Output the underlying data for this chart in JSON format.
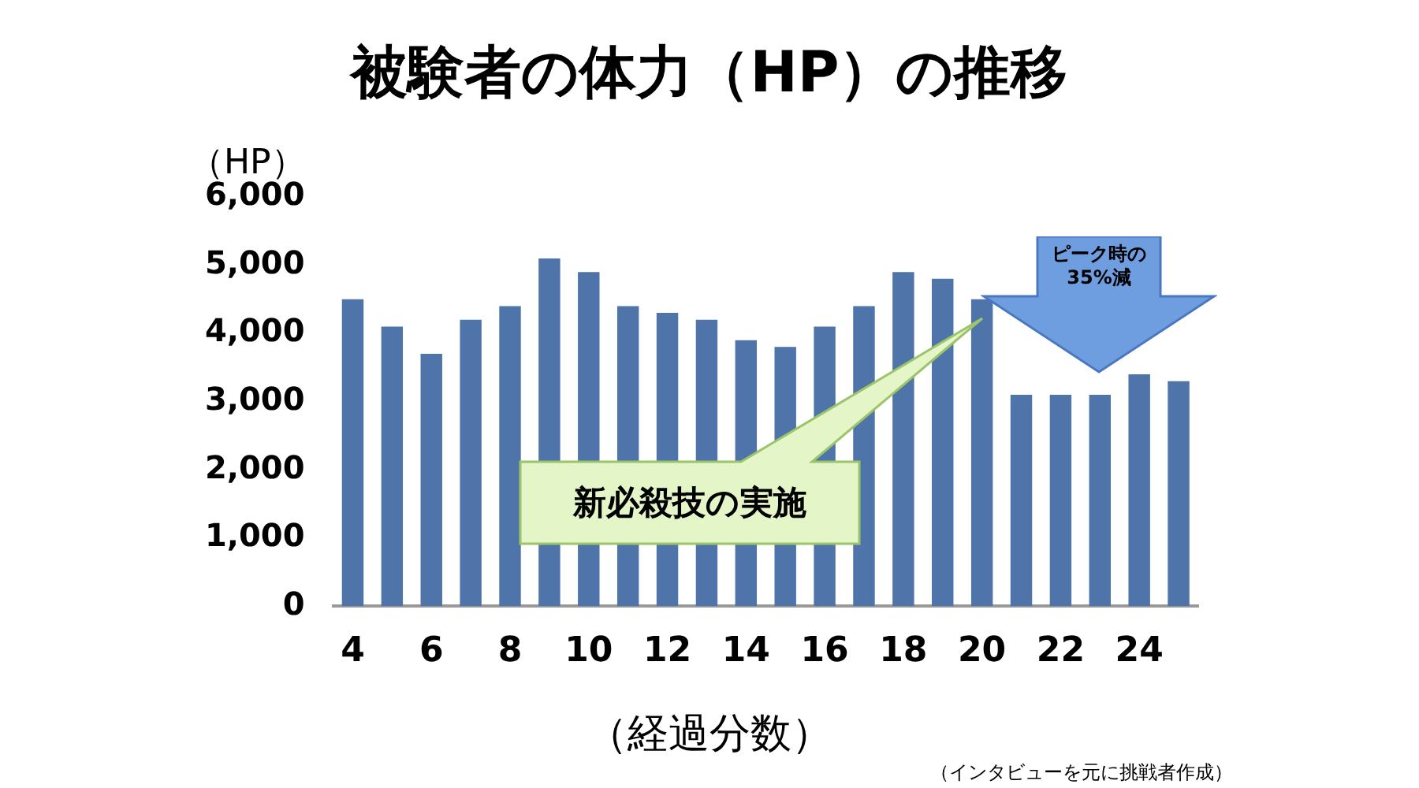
{
  "chart_data": {
    "type": "bar",
    "title": "被験者の体力（HP）の推移",
    "ylabel": "（HP）",
    "xlabel": "（経過分数）",
    "categories": [
      "4",
      null,
      "6",
      null,
      "8",
      null,
      "10",
      null,
      "12",
      null,
      "14",
      null,
      "16",
      null,
      "18",
      null,
      "20",
      null,
      "22",
      null,
      "24",
      null
    ],
    "values": [
      4500,
      4100,
      3700,
      4200,
      4400,
      5100,
      4900,
      4400,
      4300,
      4200,
      3900,
      3800,
      4100,
      4400,
      4900,
      4800,
      4500,
      3100,
      3100,
      3100,
      3400,
      3300
    ],
    "color": "#4f74aa",
    "ylim": [
      0,
      6000
    ],
    "yticks": [
      0,
      {
        "value": 1000,
        "label": "1,000"
      },
      {
        "value": 2000,
        "label": "2,000"
      },
      {
        "value": 3000,
        "label": "3,000"
      },
      {
        "value": 4000,
        "label": "4,000"
      },
      {
        "value": 5000,
        "label": "5,000"
      },
      {
        "value": 6000,
        "label": "6,000"
      }
    ],
    "annotations": [
      "新必殺技の実施",
      "ピーク時の35%減",
      "（インタビューを元に挑戦者作成）"
    ]
  }
}
